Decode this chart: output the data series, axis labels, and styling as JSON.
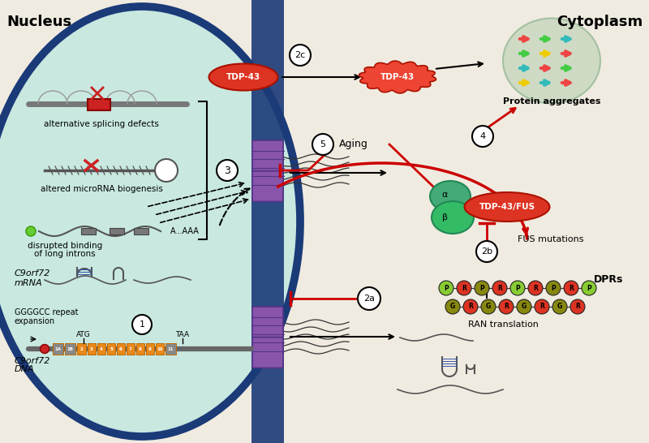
{
  "bg_color": "#f0ebe0",
  "nucleus_color": "#c8e8e0",
  "nucleus_border": "#1a3a78",
  "text_nucleus": "Nucleus",
  "text_cytoplasm": "Cytoplasm",
  "label_alt_splicing": "alternative splicing defects",
  "label_microrna": "altered microRNA biogenesis",
  "label_intron1": "disrupted binding",
  "label_intron2": "of long introns",
  "label_mrna": "C9orf72",
  "label_mrna2": "mRNA",
  "label_dna": "C9orf72",
  "label_dna2": "DNA",
  "label_ggggcc1": "GGGGCC repeat",
  "label_ggggcc2": "expansion",
  "label_protein_agg": "Protein aggregates",
  "label_tdpfus": "TDP-43/FUS",
  "label_fus_mut": "FUS mutations",
  "label_ran": "RAN translation",
  "label_dprs": "DPRs",
  "label_aging": "Aging",
  "atg_label": "ATG",
  "taa_label": "TAA",
  "exon_color": "#e8891a",
  "exon_border": "#c06800",
  "red_color": "#cc0000",
  "black_color": "#111111",
  "gray_color": "#888888",
  "purple_npc": "#8855aa",
  "green_fus": "#44aa77",
  "red_tdp43": "#dd3322",
  "label_2c": "2c",
  "label_3": "3",
  "label_1": "1",
  "label_2a": "2a",
  "label_2b": "2b",
  "label_4": "4",
  "label_5": "5",
  "npc_purple": "#7755aa",
  "npc_dark": "#553388"
}
